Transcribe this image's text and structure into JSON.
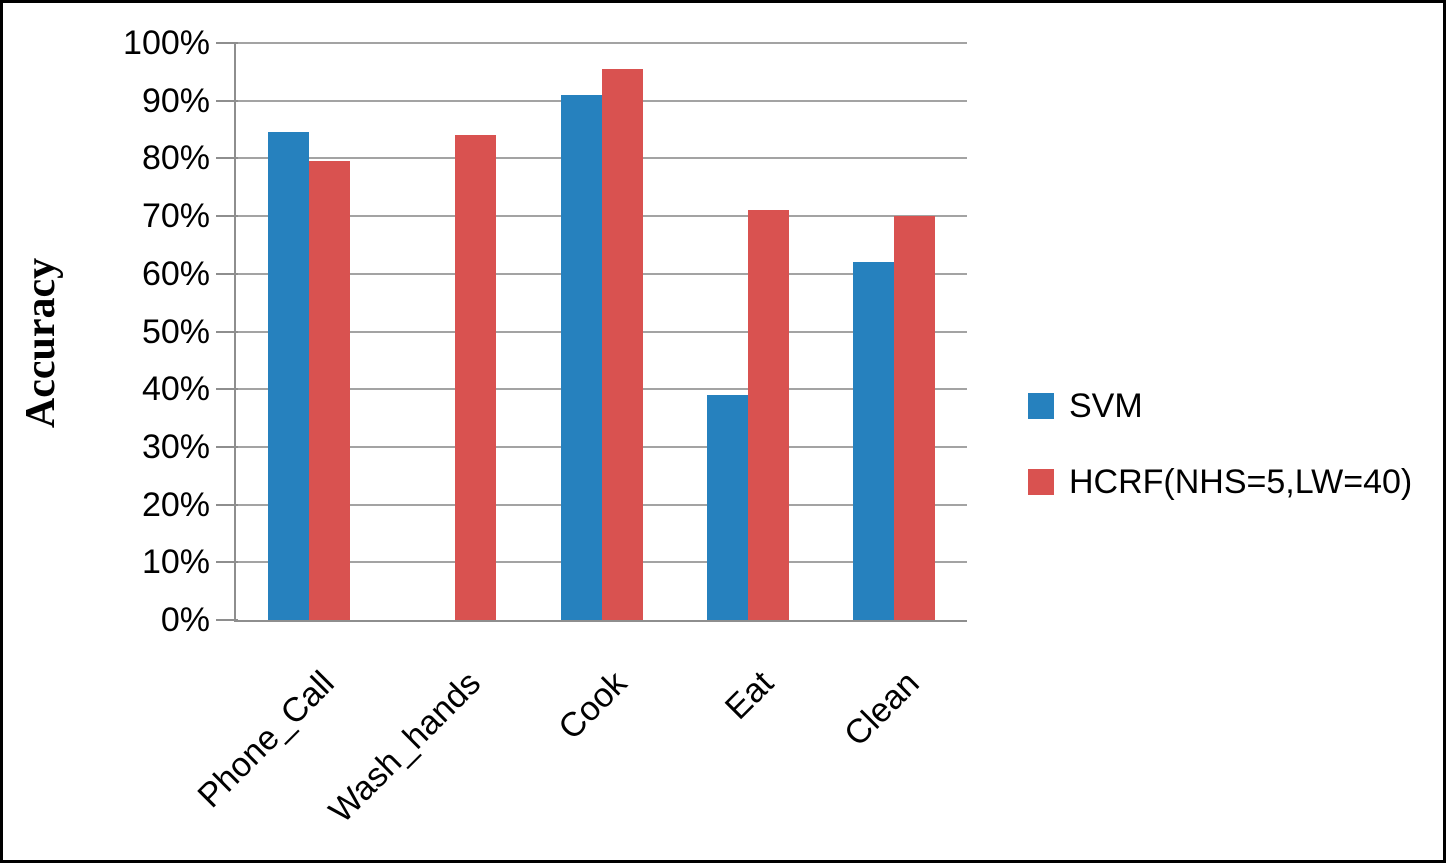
{
  "chart_data": {
    "type": "bar",
    "title": "",
    "xlabel": "",
    "ylabel": "Accuracy",
    "categories": [
      "Phone_Call",
      "Wash_hands",
      "Cook",
      "Eat",
      "Clean"
    ],
    "series": [
      {
        "name": "SVM",
        "color": "#2681be",
        "values": [
          84.5,
          0,
          91,
          39,
          62
        ]
      },
      {
        "name": "HCRF(NHS=5,LW=40)",
        "color": "#d95250",
        "values": [
          79.5,
          84,
          95.5,
          71,
          70
        ]
      }
    ],
    "value_unit": "percent",
    "ylim": [
      0,
      100
    ],
    "ytick_labels": [
      "0%",
      "10%",
      "20%",
      "30%",
      "40%",
      "50%",
      "60%",
      "70%",
      "80%",
      "90%",
      "100%"
    ],
    "grid": "horizontal",
    "legend_position": "right"
  },
  "colors": {
    "bar_blue": "#2681be",
    "bar_red": "#d95250",
    "gridline": "#a3a3a3",
    "axis_line": "#8e8e8e",
    "frame_border": "#000000",
    "background": "#ffffff"
  }
}
